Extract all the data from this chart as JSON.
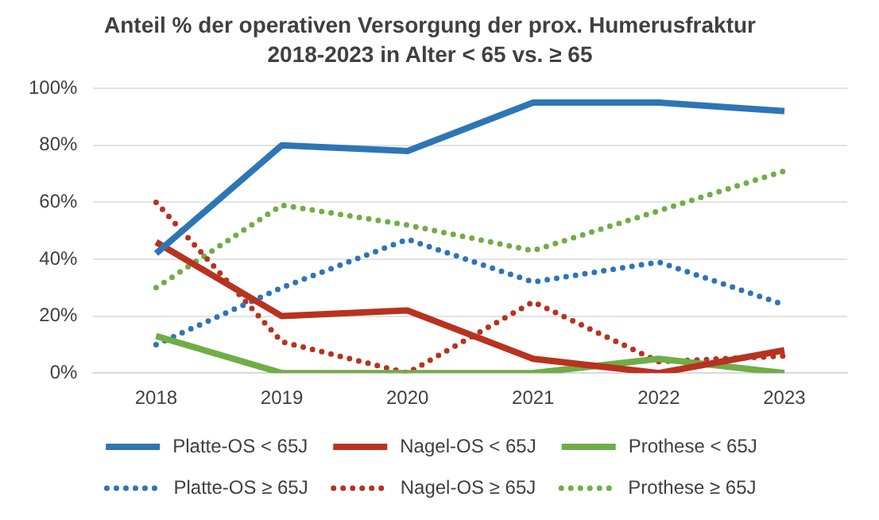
{
  "chart_data": {
    "type": "line",
    "title": "Anteil % der operativen Versorgung der prox. Humerusfraktur",
    "subtitle": "2018-2023 in Alter < 65 vs. ≥ 65",
    "categories": [
      "2018",
      "2019",
      "2020",
      "2021",
      "2022",
      "2023"
    ],
    "series": [
      {
        "name": "Platte-OS < 65J",
        "color": "#2e75b6",
        "line_style": "solid",
        "values": [
          42,
          80,
          78,
          95,
          95,
          92
        ]
      },
      {
        "name": "Nagel-OS < 65J",
        "color": "#b8321f",
        "line_style": "solid",
        "values": [
          46,
          20,
          22,
          5,
          0,
          8
        ]
      },
      {
        "name": "Prothese < 65J",
        "color": "#70ad47",
        "line_style": "solid",
        "values": [
          13,
          0,
          0,
          0,
          5,
          0
        ]
      },
      {
        "name": "Platte-OS ≥ 65J",
        "color": "#2e75b6",
        "line_style": "dotted",
        "values": [
          10,
          30,
          47,
          32,
          39,
          24
        ]
      },
      {
        "name": "Nagel-OS ≥ 65J",
        "color": "#b8321f",
        "line_style": "dotted",
        "values": [
          60,
          11,
          0,
          25,
          4,
          6
        ]
      },
      {
        "name": "Prothese ≥ 65J",
        "color": "#70ad47",
        "line_style": "dotted",
        "values": [
          30,
          59,
          52,
          43,
          57,
          71
        ]
      }
    ],
    "ylim": [
      0,
      100
    ],
    "yticks": [
      {
        "value": 0,
        "label": "0%"
      },
      {
        "value": 20,
        "label": "20%"
      },
      {
        "value": 40,
        "label": "40%"
      },
      {
        "value": 60,
        "label": "60%"
      },
      {
        "value": 80,
        "label": "80%"
      },
      {
        "value": 100,
        "label": "100%"
      }
    ],
    "grid": "y",
    "legend": "bottom",
    "marker": "none"
  }
}
